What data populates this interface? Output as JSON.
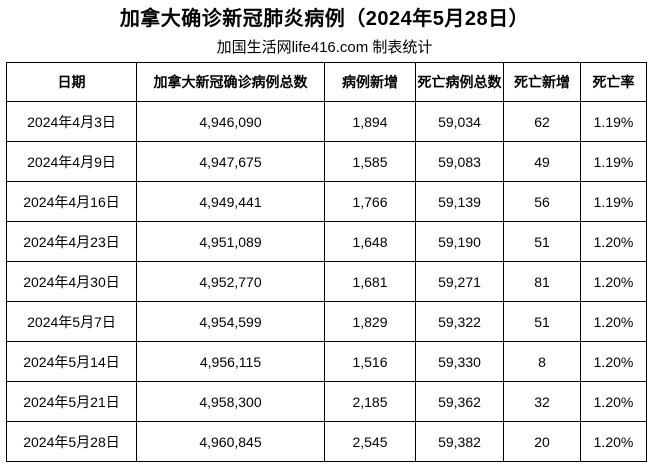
{
  "title": "加拿大确诊新冠肺炎病例（2024年5月28日）",
  "subtitle": "加国生活网life416.com 制表统计",
  "chart_data": {
    "type": "table",
    "title": "加拿大确诊新冠肺炎病例（2024年5月28日）",
    "source_label": "加国生活网life416.com 制表统计",
    "columns": [
      "日期",
      "加拿大新冠确诊病例总数",
      "病例新增",
      "死亡病例总数",
      "死亡新增",
      "死亡率"
    ],
    "rows": [
      [
        "2024年4月3日",
        "4,946,090",
        "1,894",
        "59,034",
        "62",
        "1.19%"
      ],
      [
        "2024年4月9日",
        "4,947,675",
        "1,585",
        "59,083",
        "49",
        "1.19%"
      ],
      [
        "2024年4月16日",
        "4,949,441",
        "1,766",
        "59,139",
        "56",
        "1.19%"
      ],
      [
        "2024年4月23日",
        "4,951,089",
        "1,648",
        "59,190",
        "51",
        "1.20%"
      ],
      [
        "2024年4月30日",
        "4,952,770",
        "1,681",
        "59,271",
        "81",
        "1.20%"
      ],
      [
        "2024年5月7日",
        "4,954,599",
        "1,829",
        "59,322",
        "51",
        "1.20%"
      ],
      [
        "2024年5月14日",
        "4,956,115",
        "1,516",
        "59,330",
        "8",
        "1.20%"
      ],
      [
        "2024年5月21日",
        "4,958,300",
        "2,185",
        "59,362",
        "32",
        "1.20%"
      ],
      [
        "2024年5月28日",
        "4,960,845",
        "2,545",
        "59,382",
        "20",
        "1.20%"
      ]
    ]
  }
}
